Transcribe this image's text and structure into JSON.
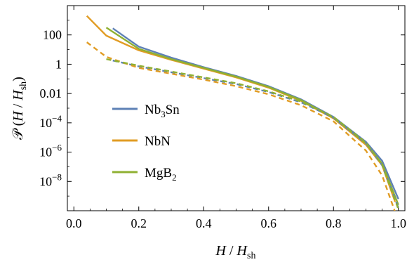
{
  "chart_data": {
    "type": "line",
    "title": "",
    "xlabel": {
      "main": "H",
      "sep": " / ",
      "var": "H",
      "sub": "sh"
    },
    "ylabel": {
      "script": "𝒫",
      "open": " (",
      "main": "H",
      "sep": " / ",
      "var": "H",
      "sub": "sh",
      "close": ")"
    },
    "xlim": [
      -0.02,
      1.02
    ],
    "ylim_log10": [
      -10,
      4
    ],
    "y_scale": "log",
    "x_ticks": [
      {
        "value": 0.0,
        "label": "0.0"
      },
      {
        "value": 0.2,
        "label": "0.2"
      },
      {
        "value": 0.4,
        "label": "0.4"
      },
      {
        "value": 0.6,
        "label": "0.6"
      },
      {
        "value": 0.8,
        "label": "0.8"
      },
      {
        "value": 1.0,
        "label": "1.0"
      }
    ],
    "y_ticks": [
      {
        "log10": 2,
        "label": "100"
      },
      {
        "log10": 0,
        "label": "1"
      },
      {
        "log10": -2,
        "label": "0.01"
      },
      {
        "log10": -4,
        "base": "10",
        "exp": "−4"
      },
      {
        "log10": -6,
        "base": "10",
        "exp": "−6"
      },
      {
        "log10": -8,
        "base": "10",
        "exp": "−8"
      }
    ],
    "legend": {
      "placement": "center-left",
      "entries": [
        {
          "parts": [
            "Nb",
            "3",
            "Sn"
          ],
          "color": "#5e81b5"
        },
        {
          "parts": [
            "NbN",
            "",
            ""
          ],
          "color": "#e19c24"
        },
        {
          "parts": [
            "MgB",
            "2",
            ""
          ],
          "color": "#8fb032"
        }
      ]
    },
    "series": [
      {
        "name": "Nb3Sn",
        "style": "solid",
        "color": "#5e81b5",
        "x": [
          0.12,
          0.2,
          0.3,
          0.4,
          0.5,
          0.6,
          0.7,
          0.8,
          0.9,
          0.95,
          1.0
        ],
        "log10y": [
          2.45,
          1.2,
          0.45,
          -0.2,
          -0.8,
          -1.5,
          -2.4,
          -3.6,
          -5.3,
          -6.6,
          -9.2
        ]
      },
      {
        "name": "NbN",
        "style": "solid",
        "color": "#e19c24",
        "x": [
          0.04,
          0.1,
          0.2,
          0.3,
          0.4,
          0.5,
          0.6,
          0.7,
          0.8,
          0.9,
          0.95,
          0.99
        ],
        "log10y": [
          3.3,
          1.95,
          0.95,
          0.3,
          -0.3,
          -0.9,
          -1.6,
          -2.5,
          -3.7,
          -5.5,
          -6.9,
          -9.4
        ]
      },
      {
        "name": "MgB2",
        "style": "solid",
        "color": "#8fb032",
        "x": [
          0.1,
          0.2,
          0.3,
          0.4,
          0.5,
          0.6,
          0.7,
          0.8,
          0.9,
          0.95,
          1.0
        ],
        "log10y": [
          2.5,
          1.05,
          0.35,
          -0.25,
          -0.85,
          -1.55,
          -2.45,
          -3.65,
          -5.4,
          -6.8,
          -9.6
        ]
      },
      {
        "name": "Nb3Sn (dashed)",
        "style": "dashed",
        "color": "#5e81b5",
        "x": [
          0.12,
          0.2,
          0.3,
          0.4,
          0.5,
          0.6,
          0.7,
          0.8,
          0.9,
          0.95,
          1.0
        ],
        "log10y": [
          0.25,
          -0.15,
          -0.55,
          -0.95,
          -1.35,
          -1.9,
          -2.6,
          -3.65,
          -5.4,
          -6.9,
          -9.8
        ]
      },
      {
        "name": "NbN (dashed)",
        "style": "dashed",
        "color": "#e19c24",
        "x": [
          0.04,
          0.1,
          0.2,
          0.3,
          0.4,
          0.5,
          0.6,
          0.7,
          0.8,
          0.9,
          0.95,
          0.99
        ],
        "log10y": [
          1.5,
          0.5,
          -0.25,
          -0.65,
          -1.05,
          -1.5,
          -2.05,
          -2.8,
          -3.9,
          -5.9,
          -7.6,
          -10.1
        ]
      },
      {
        "name": "MgB2 (dashed)",
        "style": "dashed",
        "color": "#8fb032",
        "x": [
          0.1,
          0.2,
          0.3,
          0.4,
          0.5,
          0.6,
          0.7,
          0.8,
          0.9,
          0.95,
          1.0
        ],
        "log10y": [
          0.35,
          -0.1,
          -0.5,
          -0.9,
          -1.3,
          -1.85,
          -2.55,
          -3.6,
          -5.35,
          -6.85,
          -9.9
        ]
      }
    ]
  }
}
